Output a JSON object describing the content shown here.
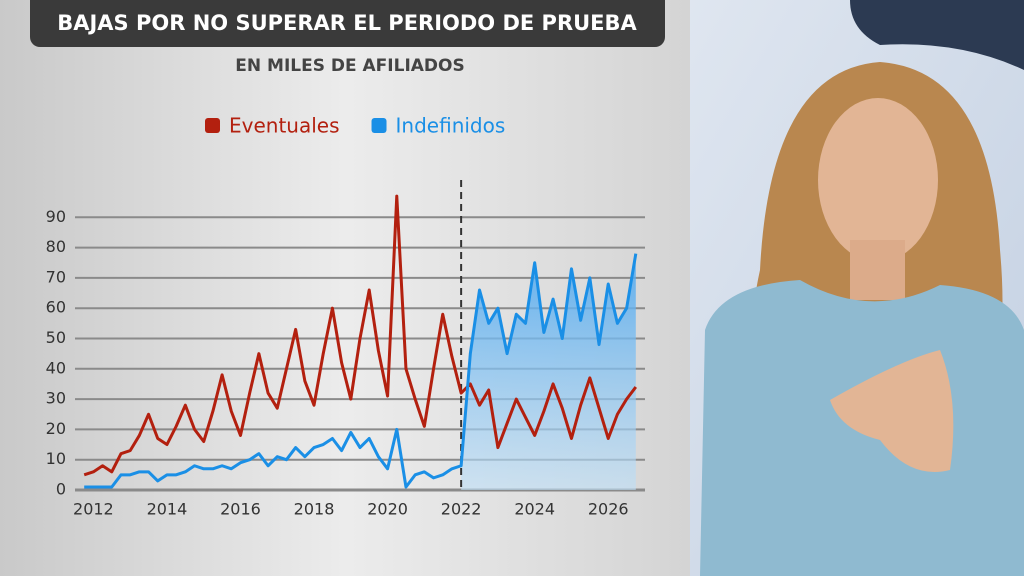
{
  "chart_data": {
    "type": "line",
    "title": "BAJAS POR NO SUPERAR EL PERIODO DE PRUEBA",
    "subtitle": "EN MILES DE AFILIADOS",
    "x": [
      2011.75,
      2012,
      2012.25,
      2012.5,
      2012.75,
      2013,
      2013.25,
      2013.5,
      2013.75,
      2014,
      2014.25,
      2014.5,
      2014.75,
      2015,
      2015.25,
      2015.5,
      2015.75,
      2016,
      2016.25,
      2016.5,
      2016.75,
      2017,
      2017.25,
      2017.5,
      2017.75,
      2018,
      2018.25,
      2018.5,
      2018.75,
      2019,
      2019.25,
      2019.5,
      2019.75,
      2020,
      2020.25,
      2020.5,
      2020.75,
      2021,
      2021.25,
      2021.5,
      2021.75,
      2022,
      2022.25,
      2022.5,
      2022.75,
      2023,
      2023.25,
      2023.5,
      2023.75,
      2024,
      2024.25,
      2024.5,
      2024.75,
      2025,
      2025.25,
      2025.5,
      2025.75,
      2026,
      2026.25,
      2026.5,
      2026.75
    ],
    "series": [
      {
        "name": "Eventuales",
        "color": "#b3200f",
        "values": [
          5,
          6,
          8,
          6,
          12,
          13,
          18,
          25,
          17,
          15,
          21,
          28,
          20,
          16,
          26,
          38,
          26,
          18,
          32,
          45,
          32,
          27,
          40,
          53,
          36,
          28,
          45,
          60,
          42,
          30,
          50,
          66,
          46,
          31,
          97,
          40,
          30,
          21,
          40,
          58,
          44,
          32,
          35,
          28,
          33,
          14,
          22,
          30,
          24,
          18,
          26,
          35,
          27,
          17,
          28,
          37,
          27,
          17,
          25,
          30,
          34
        ]
      },
      {
        "name": "Indefinidos",
        "color": "#1a8fe6",
        "values": [
          1,
          1,
          1,
          1,
          5,
          5,
          6,
          6,
          3,
          5,
          5,
          6,
          8,
          7,
          7,
          8,
          7,
          9,
          10,
          12,
          8,
          11,
          10,
          14,
          11,
          14,
          15,
          17,
          13,
          19,
          14,
          17,
          11,
          7,
          20,
          1,
          5,
          6,
          4,
          5,
          7,
          8,
          45,
          66,
          55,
          60,
          45,
          58,
          55,
          75,
          52,
          63,
          50,
          73,
          56,
          70,
          48,
          68,
          55,
          60,
          78
        ]
      }
    ],
    "xlim": [
      2011.5,
      2027
    ],
    "xticks": [
      2012,
      2014,
      2016,
      2018,
      2020,
      2022,
      2024,
      2026
    ],
    "ylim": [
      0,
      100
    ],
    "yticks": [
      0,
      10,
      20,
      30,
      40,
      50,
      60,
      70,
      80,
      90
    ],
    "grid": true,
    "divider_x": 2022
  }
}
